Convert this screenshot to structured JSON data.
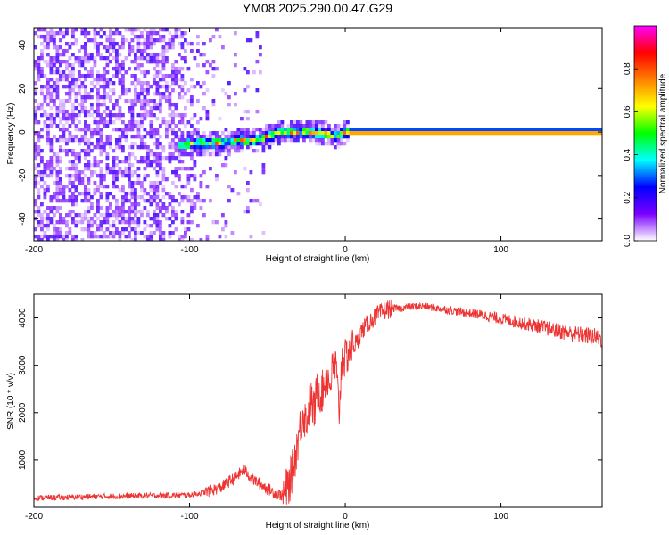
{
  "chart_data": [
    {
      "type": "heatmap",
      "title": "YM08.2025.290.00.47.G29",
      "xlabel": "Height of straight line (km)",
      "ylabel": "Frequency (Hz)",
      "xlim": [
        -200,
        165
      ],
      "ylim": [
        -50,
        48
      ],
      "xticks": [
        -200,
        -100,
        0,
        100
      ],
      "yticks": [
        -40,
        -20,
        0,
        20,
        40
      ],
      "xtick_labels": [
        "-200",
        "-100",
        "0",
        "100"
      ],
      "ytick_labels": [
        "-40",
        "-20",
        "0",
        "20",
        "40"
      ],
      "ridge_frequency_hz": {
        "x": [
          -105,
          -95,
          -80,
          -70,
          -60,
          -50,
          -40,
          -30,
          -20,
          -10,
          -5,
          0,
          165
        ],
        "y": [
          -6,
          -5,
          -5,
          -4,
          -4,
          -2,
          0,
          0,
          0,
          -1,
          -2,
          0,
          0
        ]
      },
      "colorbar": {
        "label": "Normalized spectral amplitude",
        "range": [
          0.0,
          1.0
        ],
        "ticks": [
          0.0,
          0.2,
          0.4,
          0.6,
          0.8
        ],
        "tick_labels": [
          "0.0",
          "0.2",
          "0.4",
          "0.6",
          "0.8"
        ],
        "colormap": [
          "#ffffff",
          "#7a00ff",
          "#0000ff",
          "#00ffff",
          "#00ff00",
          "#ffff00",
          "#ff8000",
          "#ff0000",
          "#ff00ff"
        ]
      }
    },
    {
      "type": "line",
      "title": "",
      "xlabel": "Height of straight line (km)",
      "ylabel": "SNR (10 * v/v)",
      "xlim": [
        -200,
        165
      ],
      "ylim": [
        0,
        4500
      ],
      "xticks": [
        -200,
        -100,
        0,
        100
      ],
      "yticks": [
        1000,
        2000,
        3000,
        4000
      ],
      "xtick_labels": [
        "-200",
        "-100",
        "0",
        "100"
      ],
      "ytick_labels": [
        "1000",
        "2000",
        "3000",
        "4000"
      ],
      "series": [
        {
          "name": "SNR",
          "color": "#ee3333",
          "x": [
            -200,
            -180,
            -160,
            -140,
            -120,
            -100,
            -90,
            -80,
            -70,
            -65,
            -60,
            -55,
            -50,
            -45,
            -40,
            -36,
            -33,
            -30,
            -27,
            -25,
            -22,
            -20,
            -18,
            -15,
            -12,
            -10,
            -8,
            -6,
            -4,
            -2,
            0,
            2,
            5,
            8,
            10,
            15,
            20,
            25,
            30,
            35,
            40,
            50,
            60,
            70,
            80,
            90,
            100,
            110,
            120,
            130,
            140,
            150,
            160,
            165
          ],
          "y": [
            200,
            210,
            230,
            240,
            250,
            260,
            320,
            420,
            650,
            800,
            600,
            500,
            400,
            300,
            250,
            500,
            900,
            1500,
            2000,
            1800,
            2300,
            2000,
            2500,
            2400,
            2800,
            2600,
            2900,
            3000,
            2000,
            3200,
            3100,
            3300,
            3400,
            3500,
            3700,
            3900,
            4050,
            4150,
            4200,
            4200,
            4230,
            4250,
            4200,
            4150,
            4100,
            4050,
            3980,
            3920,
            3850,
            3780,
            3700,
            3650,
            3600,
            3550
          ]
        }
      ]
    }
  ]
}
